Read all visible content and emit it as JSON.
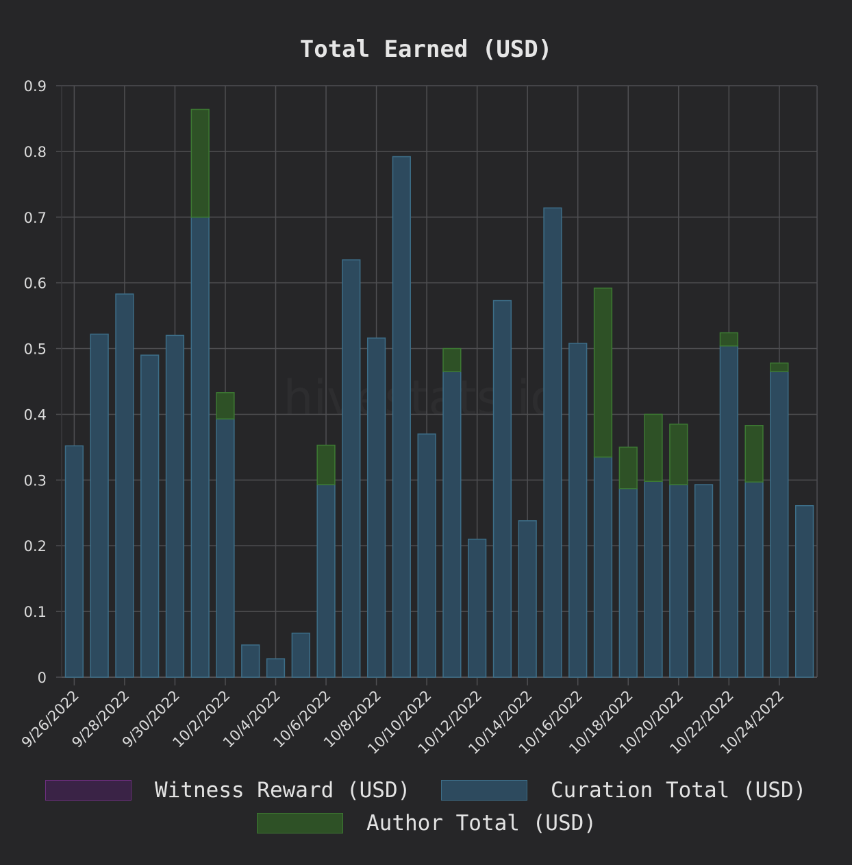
{
  "chart_data": {
    "type": "bar",
    "stacked": true,
    "title": "Total Earned (USD)",
    "watermark": "hivestats.io",
    "ylim": [
      0,
      0.9
    ],
    "yticks": [
      "0",
      "0.1",
      "0.2",
      "0.3",
      "0.4",
      "0.5",
      "0.6",
      "0.7",
      "0.8",
      "0.9"
    ],
    "ytick_values": [
      0,
      0.1,
      0.2,
      0.3,
      0.4,
      0.5,
      0.6,
      0.7,
      0.8,
      0.9
    ],
    "grid": true,
    "legend_position": "bottom",
    "categories": [
      "9/26/2022",
      "9/27/2022",
      "9/28/2022",
      "9/29/2022",
      "9/30/2022",
      "10/1/2022",
      "10/2/2022",
      "10/3/2022",
      "10/4/2022",
      "10/5/2022",
      "10/6/2022",
      "10/7/2022",
      "10/8/2022",
      "10/9/2022",
      "10/10/2022",
      "10/11/2022",
      "10/12/2022",
      "10/13/2022",
      "10/14/2022",
      "10/15/2022",
      "10/16/2022",
      "10/17/2022",
      "10/18/2022",
      "10/19/2022",
      "10/20/2022",
      "10/21/2022",
      "10/22/2022",
      "10/23/2022",
      "10/24/2022",
      "10/25/2022"
    ],
    "x_tick_labels": [
      "9/26/2022",
      "9/28/2022",
      "9/30/2022",
      "10/2/2022",
      "10/4/2022",
      "10/6/2022",
      "10/8/2022",
      "10/10/2022",
      "10/12/2022",
      "10/14/2022",
      "10/16/2022",
      "10/18/2022",
      "10/20/2022",
      "10/22/2022",
      "10/24/2022"
    ],
    "series": [
      {
        "name": "Witness Reward (USD)",
        "color": "#3a2346",
        "border": "#6e2f80",
        "values": [
          0,
          0,
          0,
          0,
          0,
          0,
          0,
          0,
          0,
          0,
          0,
          0,
          0,
          0,
          0,
          0,
          0,
          0,
          0,
          0,
          0,
          0,
          0,
          0,
          0,
          0,
          0,
          0,
          0,
          0
        ]
      },
      {
        "name": "Curation Total (USD)",
        "color": "#2d4a5e",
        "border": "#3d6e88",
        "values": [
          0.352,
          0.522,
          0.583,
          0.49,
          0.52,
          0.7,
          0.393,
          0.049,
          0.028,
          0.067,
          0.293,
          0.635,
          0.516,
          0.792,
          0.37,
          0.465,
          0.21,
          0.573,
          0.238,
          0.714,
          0.508,
          0.335,
          0.287,
          0.298,
          0.293,
          0.293,
          0.504,
          0.297,
          0.465,
          0.261
        ]
      },
      {
        "name": "Author Total (USD)",
        "color": "#2e5126",
        "border": "#3d7a33",
        "values": [
          0,
          0,
          0,
          0,
          0,
          0.164,
          0.04,
          0,
          0,
          0,
          0.06,
          0,
          0,
          0,
          0,
          0.035,
          0,
          0,
          0,
          0,
          0,
          0.257,
          0.063,
          0.102,
          0.092,
          0,
          0.02,
          0.086,
          0.013,
          0
        ]
      }
    ]
  }
}
